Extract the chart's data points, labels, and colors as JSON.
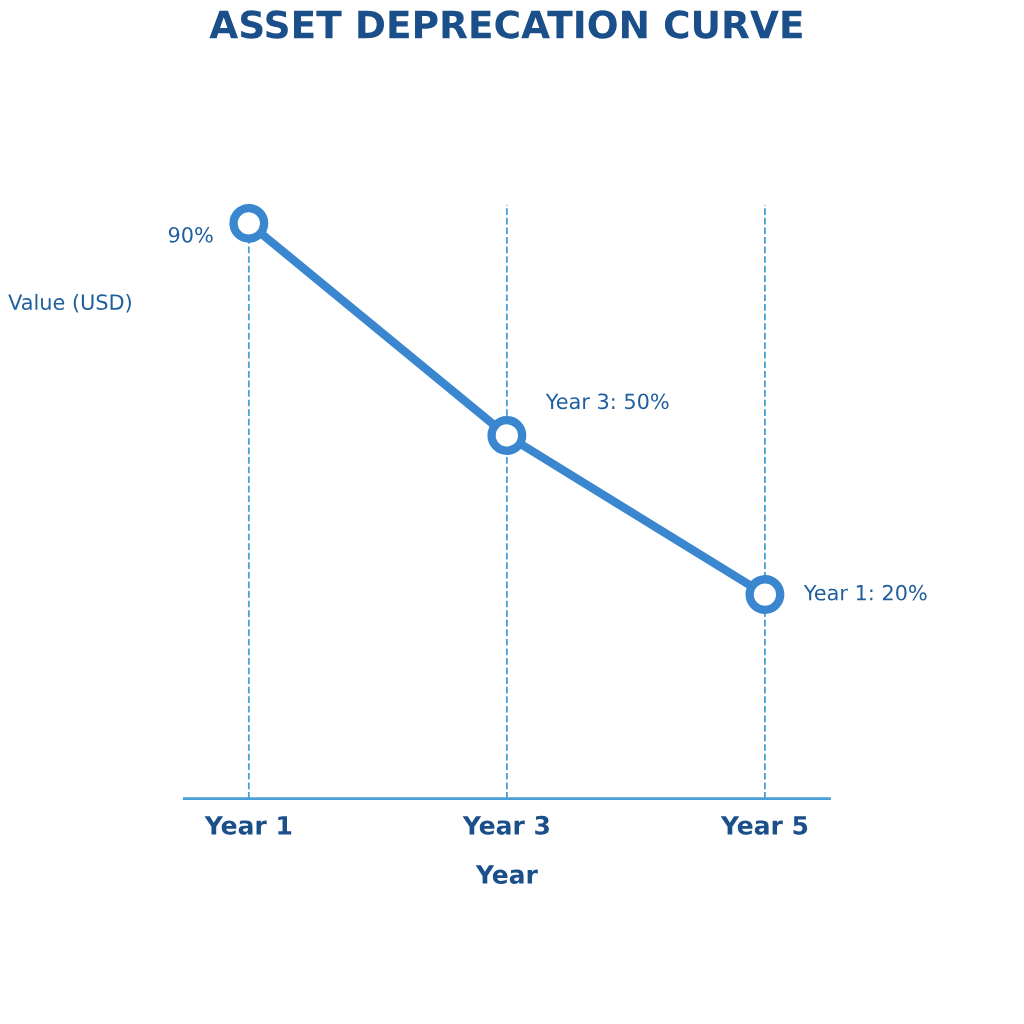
{
  "chart_data": {
    "type": "line",
    "title": "ASSET DEPRECATION CURVE",
    "xlabel": "Year",
    "ylabel": "Value (USD)",
    "categories": [
      "Year 1",
      "Year 3",
      "Year 5"
    ],
    "series": [
      {
        "color": "#3a87d0",
        "values": [
          90,
          50,
          20
        ],
        "value_labels": [
          "90%",
          "Year 3: 50%",
          "Year 1: 20%"
        ]
      }
    ],
    "tick_labels": "x",
    "marker": "circle",
    "line_style": "solid",
    "grid": "x",
    "legend": false
  }
}
